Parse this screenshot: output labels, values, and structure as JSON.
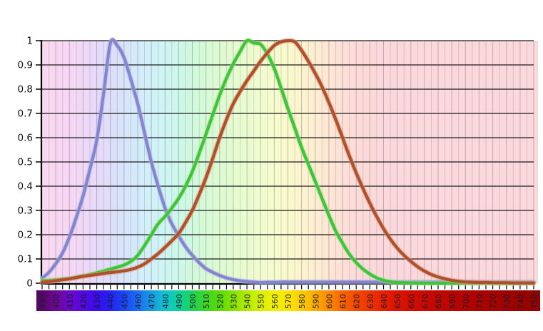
{
  "figure": {
    "description": "Normalized spectral sensitivity curves over a wavelength color scale",
    "background_color": "#ffffff"
  },
  "chart_data": {
    "type": "line",
    "title": "",
    "xlabel": "",
    "ylabel": "",
    "xlim": [
      390,
      750
    ],
    "ylim": [
      0,
      1
    ],
    "grid": {
      "horizontal": true,
      "vertical_step_nm": 5,
      "x_minor_tick_step_nm": 5
    },
    "y_ticks": [
      {
        "value": 1.0,
        "label": "1"
      },
      {
        "value": 0.9,
        "label": "0.9"
      },
      {
        "value": 0.8,
        "label": "0.8"
      },
      {
        "value": 0.7,
        "label": "0.7"
      },
      {
        "value": 0.6,
        "label": "0.6"
      },
      {
        "value": 0.5,
        "label": "0.5"
      },
      {
        "value": 0.4,
        "label": "0.4"
      },
      {
        "value": 0.3,
        "label": "0.3"
      },
      {
        "value": 0.2,
        "label": "0.2"
      },
      {
        "value": 0.1,
        "label": "0.1"
      },
      {
        "value": 0.0,
        "label": "0"
      }
    ],
    "x_ticks": [
      390,
      400,
      410,
      420,
      430,
      440,
      450,
      460,
      470,
      480,
      490,
      500,
      510,
      520,
      530,
      540,
      550,
      560,
      570,
      580,
      590,
      600,
      610,
      620,
      630,
      640,
      650,
      660,
      670,
      680,
      690,
      700,
      710,
      720,
      730,
      740,
      750
    ],
    "x": [
      390,
      395,
      400,
      405,
      410,
      415,
      420,
      425,
      430,
      435,
      440,
      445,
      450,
      455,
      460,
      465,
      470,
      475,
      480,
      485,
      490,
      495,
      500,
      505,
      510,
      515,
      520,
      525,
      530,
      535,
      540,
      545,
      550,
      555,
      560,
      565,
      570,
      575,
      580,
      585,
      590,
      595,
      600,
      605,
      610,
      615,
      620,
      625,
      630,
      635,
      640,
      645,
      650,
      655,
      660,
      665,
      670,
      675,
      680,
      685,
      690,
      695,
      700,
      705,
      710,
      715,
      720,
      725,
      730,
      735,
      740,
      745,
      750
    ],
    "series": [
      {
        "name": "blue",
        "color": "#8386cf",
        "halo": "#b6b7e4",
        "peak_nm": 442,
        "values": [
          0.02,
          0.045,
          0.08,
          0.125,
          0.19,
          0.27,
          0.36,
          0.47,
          0.59,
          0.78,
          0.99,
          0.98,
          0.93,
          0.84,
          0.74,
          0.62,
          0.5,
          0.4,
          0.31,
          0.245,
          0.195,
          0.15,
          0.115,
          0.085,
          0.06,
          0.045,
          0.032,
          0.022,
          0.015,
          0.01,
          0.007,
          0.005,
          0.003,
          0.004,
          0.004,
          0.005,
          0.005,
          0.005,
          0.005,
          0.005,
          0.005,
          0.005,
          0.005,
          0.005,
          0.005,
          0.005,
          0.005,
          0.005,
          0.005,
          0.005,
          0.005,
          0.005,
          0.005,
          0.005,
          0.005,
          0.005,
          0.005,
          0.005,
          0.005,
          0.005,
          0.005,
          0.005,
          0.005,
          0.005,
          0.005,
          0.005,
          0.005,
          0.005,
          0.005,
          0.005,
          0.005,
          0.005,
          0.005
        ]
      },
      {
        "name": "green",
        "color": "#3fc439",
        "halo": "#a0e08f",
        "peak_nm": 540,
        "values": [
          0.01,
          0.012,
          0.014,
          0.017,
          0.02,
          0.025,
          0.03,
          0.036,
          0.043,
          0.05,
          0.058,
          0.066,
          0.075,
          0.09,
          0.115,
          0.155,
          0.2,
          0.245,
          0.275,
          0.31,
          0.35,
          0.4,
          0.46,
          0.535,
          0.615,
          0.695,
          0.775,
          0.845,
          0.905,
          0.955,
          1.0,
          0.99,
          0.985,
          0.945,
          0.885,
          0.805,
          0.72,
          0.64,
          0.56,
          0.49,
          0.42,
          0.35,
          0.28,
          0.215,
          0.165,
          0.12,
          0.085,
          0.058,
          0.038,
          0.022,
          0.012,
          0.006,
          0.003,
          0.002,
          0.001,
          0.0,
          0.0,
          0.0,
          0.0,
          0.0,
          0.0,
          0.0,
          0.0,
          0.0,
          0.0,
          0.0,
          0.0,
          0.0,
          0.0,
          0.0,
          0.0,
          0.0,
          0.0
        ]
      },
      {
        "name": "red",
        "color": "#b04f2b",
        "halo": "#d69c7d",
        "peak_nm": 570,
        "values": [
          0.004,
          0.007,
          0.01,
          0.014,
          0.018,
          0.023,
          0.028,
          0.032,
          0.036,
          0.04,
          0.044,
          0.047,
          0.051,
          0.057,
          0.066,
          0.08,
          0.1,
          0.122,
          0.148,
          0.175,
          0.205,
          0.25,
          0.3,
          0.365,
          0.435,
          0.515,
          0.6,
          0.675,
          0.74,
          0.79,
          0.835,
          0.875,
          0.915,
          0.95,
          0.98,
          0.995,
          1.0,
          0.995,
          0.96,
          0.915,
          0.865,
          0.81,
          0.745,
          0.675,
          0.6,
          0.525,
          0.455,
          0.39,
          0.33,
          0.275,
          0.225,
          0.182,
          0.145,
          0.115,
          0.09,
          0.068,
          0.05,
          0.036,
          0.026,
          0.018,
          0.012,
          0.008,
          0.005,
          0.004,
          0.003,
          0.003,
          0.002,
          0.002,
          0.002,
          0.001,
          0.001,
          0.001,
          0.001
        ]
      }
    ],
    "background_spectrum": [
      {
        "wl": 390,
        "color": "#f9d7ee"
      },
      {
        "wl": 400,
        "color": "#f8d7f0"
      },
      {
        "wl": 410,
        "color": "#f6d7f3"
      },
      {
        "wl": 420,
        "color": "#f0d8f6"
      },
      {
        "wl": 430,
        "color": "#e7daf8"
      },
      {
        "wl": 440,
        "color": "#dedef9"
      },
      {
        "wl": 450,
        "color": "#d8e4fa"
      },
      {
        "wl": 460,
        "color": "#d4ebfa"
      },
      {
        "wl": 470,
        "color": "#d1f1f8"
      },
      {
        "wl": 480,
        "color": "#cef5f2"
      },
      {
        "wl": 490,
        "color": "#cdf7e8"
      },
      {
        "wl": 500,
        "color": "#d1f8dd"
      },
      {
        "wl": 510,
        "color": "#d7fad5"
      },
      {
        "wl": 520,
        "color": "#defad2"
      },
      {
        "wl": 530,
        "color": "#e5fbd0"
      },
      {
        "wl": 540,
        "color": "#ebfbcf"
      },
      {
        "wl": 550,
        "color": "#f1fbce"
      },
      {
        "wl": 560,
        "color": "#f6fbcd"
      },
      {
        "wl": 570,
        "color": "#faf8cd"
      },
      {
        "wl": 580,
        "color": "#fcf2cf"
      },
      {
        "wl": 590,
        "color": "#fdecd2"
      },
      {
        "wl": 600,
        "color": "#fde5d4"
      },
      {
        "wl": 610,
        "color": "#fddfd7"
      },
      {
        "wl": 620,
        "color": "#fcdbd9"
      },
      {
        "wl": 630,
        "color": "#fbd9da"
      },
      {
        "wl": 650,
        "color": "#fbd8db"
      },
      {
        "wl": 700,
        "color": "#fbd8db"
      },
      {
        "wl": 750,
        "color": "#fbd8db"
      }
    ],
    "colorbar": {
      "labels": [
        390,
        400,
        410,
        420,
        430,
        440,
        450,
        460,
        470,
        480,
        490,
        500,
        510,
        520,
        530,
        540,
        550,
        560,
        570,
        580,
        590,
        600,
        610,
        620,
        630,
        640,
        650,
        660,
        670,
        680,
        690,
        700,
        710,
        720,
        730,
        740,
        750
      ],
      "stops": [
        {
          "wl": 390,
          "color": "#560668"
        },
        {
          "wl": 400,
          "color": "#6d0894"
        },
        {
          "wl": 410,
          "color": "#6a08c8"
        },
        {
          "wl": 420,
          "color": "#5409e0"
        },
        {
          "wl": 430,
          "color": "#3a0cee"
        },
        {
          "wl": 440,
          "color": "#2423f2"
        },
        {
          "wl": 450,
          "color": "#1a46f5"
        },
        {
          "wl": 460,
          "color": "#1a6ef2"
        },
        {
          "wl": 470,
          "color": "#189be2"
        },
        {
          "wl": 480,
          "color": "#12c3cf"
        },
        {
          "wl": 490,
          "color": "#0cd29c"
        },
        {
          "wl": 500,
          "color": "#1fd355"
        },
        {
          "wl": 510,
          "color": "#3fd527"
        },
        {
          "wl": 520,
          "color": "#59dc04"
        },
        {
          "wl": 530,
          "color": "#87e300"
        },
        {
          "wl": 540,
          "color": "#b2ea00"
        },
        {
          "wl": 550,
          "color": "#d7f000"
        },
        {
          "wl": 560,
          "color": "#f1f000"
        },
        {
          "wl": 570,
          "color": "#fbe500"
        },
        {
          "wl": 580,
          "color": "#fdcd00"
        },
        {
          "wl": 590,
          "color": "#fdab00"
        },
        {
          "wl": 600,
          "color": "#fd8a00"
        },
        {
          "wl": 610,
          "color": "#fa6400"
        },
        {
          "wl": 620,
          "color": "#f64900"
        },
        {
          "wl": 630,
          "color": "#ee3300"
        },
        {
          "wl": 640,
          "color": "#e52000"
        },
        {
          "wl": 650,
          "color": "#dc1300"
        },
        {
          "wl": 660,
          "color": "#d30d00"
        },
        {
          "wl": 670,
          "color": "#ca0900"
        },
        {
          "wl": 680,
          "color": "#c10700"
        },
        {
          "wl": 690,
          "color": "#b90500"
        },
        {
          "wl": 700,
          "color": "#b10400"
        },
        {
          "wl": 710,
          "color": "#aa0300"
        },
        {
          "wl": 720,
          "color": "#a40300"
        },
        {
          "wl": 730,
          "color": "#9e0200"
        },
        {
          "wl": 740,
          "color": "#980200"
        },
        {
          "wl": 750,
          "color": "#930200"
        }
      ]
    },
    "colors": {
      "axis": "#000000",
      "grid_h": "#1c1c1c",
      "grid_v_minor": "rgba(70,60,85,0.18)",
      "grid_v_major": "rgba(70,60,85,0.30)",
      "tick_label": "#111111",
      "bar_label": "#1c1c30"
    }
  }
}
